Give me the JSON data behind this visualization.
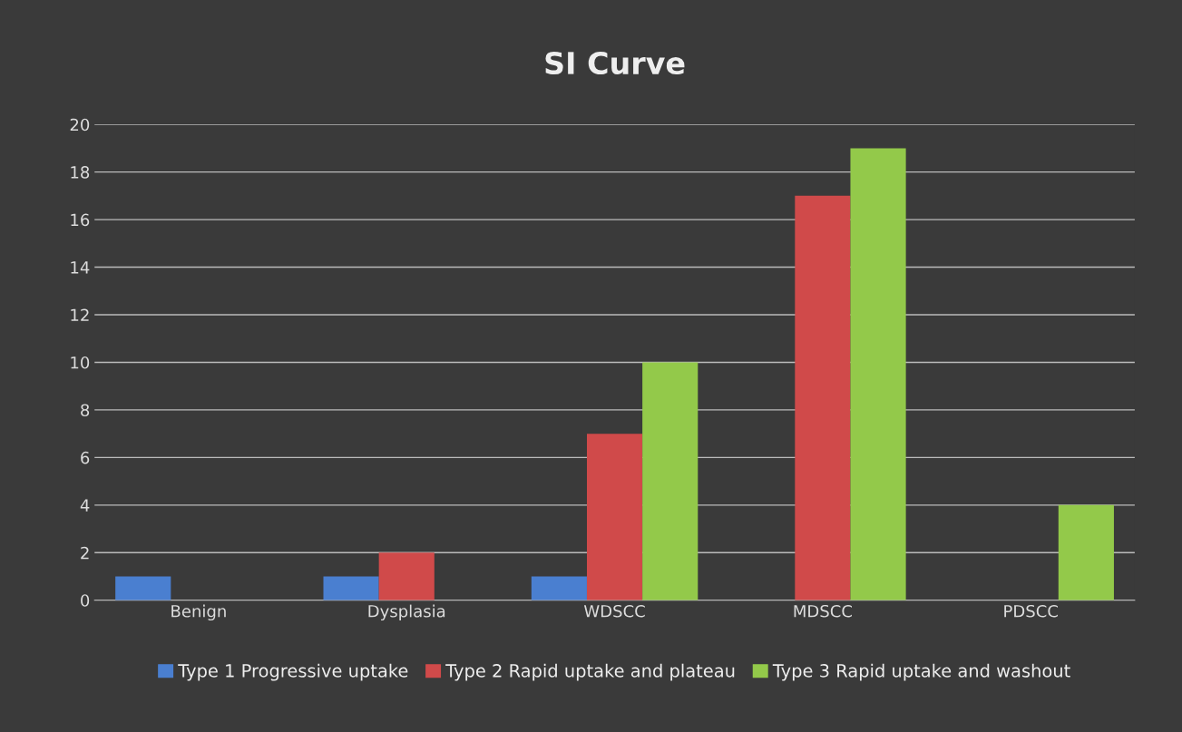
{
  "chart_data": {
    "type": "bar",
    "title": "SI Curve",
    "categories": [
      "Benign",
      "Dysplasia",
      "WDSCC",
      "MDSCC",
      "PDSCC"
    ],
    "series": [
      {
        "name": "Type 1 Progressive uptake",
        "color": "#4a7fd0",
        "values": [
          1,
          1,
          1,
          0,
          0
        ]
      },
      {
        "name": "Type 2 Rapid uptake and plateau",
        "color": "#d04a4a",
        "values": [
          0,
          2,
          7,
          17,
          0
        ]
      },
      {
        "name": "Type 3 Rapid uptake and washout",
        "color": "#93c94a",
        "values": [
          0,
          0,
          10,
          19,
          4
        ]
      }
    ],
    "ylim": [
      0,
      20
    ],
    "yticks": [
      0,
      2,
      4,
      6,
      8,
      10,
      12,
      14,
      16,
      18,
      20
    ],
    "grid": "y",
    "legend": "bottom"
  }
}
